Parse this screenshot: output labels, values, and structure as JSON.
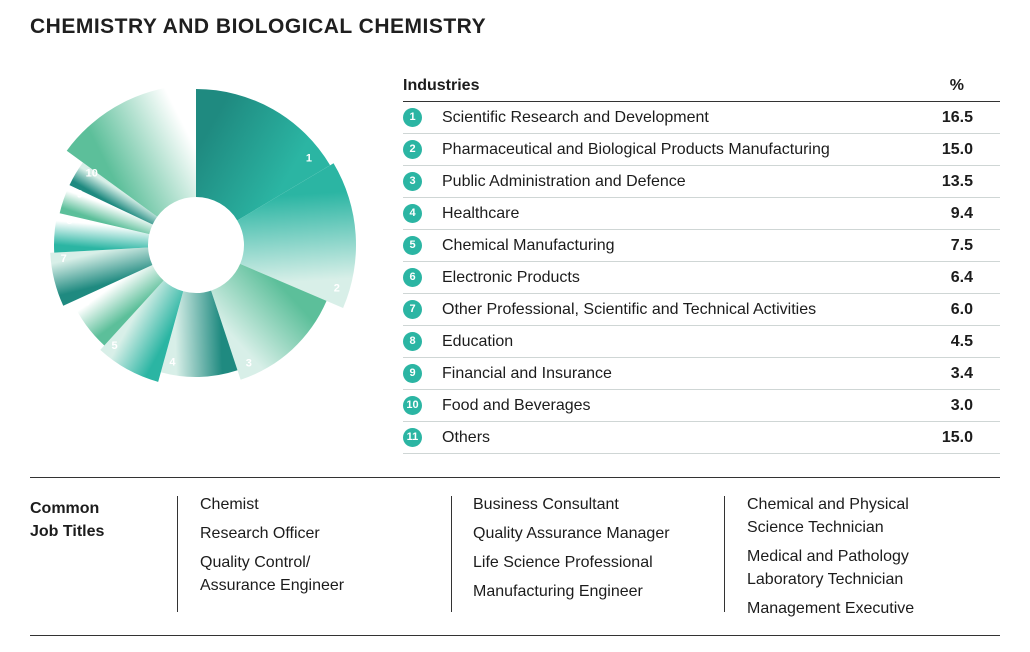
{
  "page_title": "CHEMISTRY AND BIOLOGICAL CHEMISTRY",
  "table": {
    "header_label": "Industries",
    "header_value": "%"
  },
  "chart_data": {
    "type": "pie",
    "categories": [
      "Scientific Research and Development",
      "Pharmaceutical and Biological Products Manufacturing",
      "Public Administration and Defence",
      "Healthcare",
      "Chemical Manufacturing",
      "Electronic Products",
      "Other Professional, Scientific and Technical Activities",
      "Education",
      "Financial and Insurance",
      "Food and Beverages",
      "Others"
    ],
    "values": [
      16.5,
      15.0,
      13.5,
      9.4,
      7.5,
      6.4,
      6.0,
      4.5,
      3.4,
      3.0,
      15.0
    ],
    "value_labels": [
      "16.5",
      "15.0",
      "13.5",
      "9.4",
      "7.5",
      "6.4",
      "6.0",
      "4.5",
      "3.4",
      "3.0",
      "15.0"
    ],
    "slice_labels": [
      "1",
      "2",
      "3",
      "4",
      "5",
      "6",
      "7",
      "8",
      "9",
      "10",
      "11"
    ],
    "colors": {
      "dark": "#1f8a80",
      "teal": "#2bb5a3",
      "mid": "#5cbf9a",
      "light": "#d8efe8",
      "number_badge": "#2bb5a3"
    },
    "style": "donut"
  },
  "jobs": {
    "heading_line1": "Common",
    "heading_line2": "Job Titles",
    "columns": [
      [
        "Chemist",
        "Research Officer",
        "Quality Control/",
        "Assurance Engineer"
      ],
      [
        "Business Consultant",
        "Quality Assurance Manager",
        "Life Science Professional",
        "Manufacturing Engineer"
      ],
      [
        "Chemical and Physical",
        "Science Technician",
        "Medical and Pathology",
        "Laboratory Technician",
        "Management Executive"
      ]
    ]
  }
}
